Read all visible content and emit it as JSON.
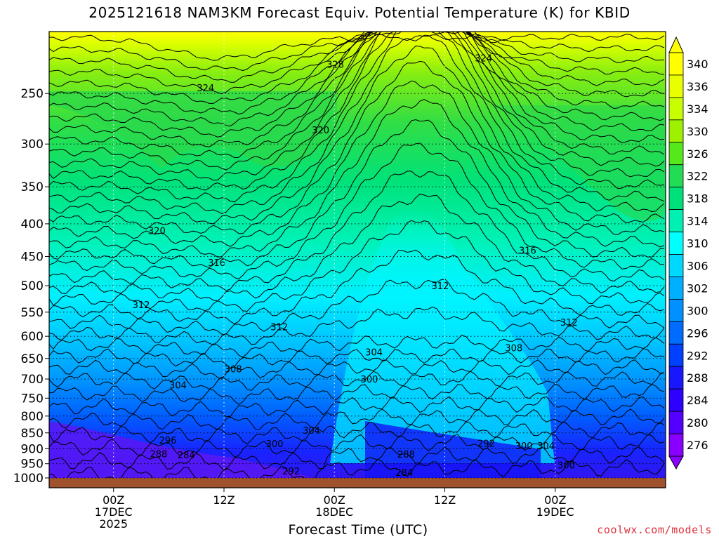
{
  "title": "2025121618 NAM3KM Forecast Equiv. Potential Temperature (K) for KBID",
  "credit": "coolwx.com/models",
  "chart_data": {
    "type": "heatmap",
    "title": "2025121618 NAM3KM Forecast Equiv. Potential Temperature (K) for KBID",
    "xlabel": "Forecast Time (UTC)",
    "ylabel": "",
    "x_hours_from_start": [
      -7,
      60
    ],
    "x_ticks": [
      {
        "hour": 0,
        "lines": [
          "00Z",
          "17DEC",
          "2025"
        ]
      },
      {
        "hour": 12,
        "lines": [
          "12Z"
        ]
      },
      {
        "hour": 24,
        "lines": [
          "00Z",
          "18DEC"
        ]
      },
      {
        "hour": 36,
        "lines": [
          "12Z"
        ]
      },
      {
        "hour": 48,
        "lines": [
          "00Z",
          "19DEC"
        ]
      }
    ],
    "y_axis": "pressure (hPa), reversed",
    "y_range": [
      1000,
      200
    ],
    "y_ticks": [
      250,
      300,
      350,
      400,
      450,
      500,
      550,
      600,
      650,
      700,
      750,
      800,
      850,
      900,
      950,
      1000
    ],
    "colorbar": {
      "labels": [
        340,
        336,
        334,
        330,
        326,
        322,
        318,
        314,
        310,
        306,
        302,
        300,
        296,
        292,
        288,
        284,
        280,
        276
      ],
      "colors": [
        "#ffff00",
        "#e9ff00",
        "#c8ff00",
        "#9cf000",
        "#55e81a",
        "#22dc55",
        "#00e07a",
        "#00f0b4",
        "#00ffff",
        "#00d8ff",
        "#00b0ff",
        "#0090ff",
        "#006cff",
        "#0040ff",
        "#1818ff",
        "#2e00ff",
        "#5500ff",
        "#8a00ff"
      ]
    },
    "contour_labels": [
      {
        "text": "328",
        "hour": 24.1,
        "p": 225
      },
      {
        "text": "324",
        "hour": 10,
        "p": 245
      },
      {
        "text": "324",
        "hour": 40.2,
        "p": 220
      },
      {
        "text": "320",
        "hour": 22.5,
        "p": 285
      },
      {
        "text": "320",
        "hour": 4.7,
        "p": 410
      },
      {
        "text": "316",
        "hour": 11.2,
        "p": 460
      },
      {
        "text": "316",
        "hour": 45,
        "p": 440
      },
      {
        "text": "312",
        "hour": 3,
        "p": 535
      },
      {
        "text": "312",
        "hour": 18,
        "p": 580
      },
      {
        "text": "312",
        "hour": 35.5,
        "p": 500
      },
      {
        "text": "312",
        "hour": 49.5,
        "p": 570
      },
      {
        "text": "308",
        "hour": 13,
        "p": 675
      },
      {
        "text": "308",
        "hour": 43.5,
        "p": 625
      },
      {
        "text": "304",
        "hour": 7,
        "p": 715
      },
      {
        "text": "304",
        "hour": 28.3,
        "p": 635
      },
      {
        "text": "304",
        "hour": 21.5,
        "p": 842
      },
      {
        "text": "304",
        "hour": 47,
        "p": 890
      },
      {
        "text": "300",
        "hour": 17.5,
        "p": 883
      },
      {
        "text": "300",
        "hour": 27.8,
        "p": 700
      },
      {
        "text": "300",
        "hour": 44.6,
        "p": 890
      },
      {
        "text": "300",
        "hour": 49.2,
        "p": 954
      },
      {
        "text": "296",
        "hour": 5.9,
        "p": 872
      },
      {
        "text": "292",
        "hour": 19.3,
        "p": 975
      },
      {
        "text": "292",
        "hour": 40.5,
        "p": 882
      },
      {
        "text": "288",
        "hour": 4.9,
        "p": 916
      },
      {
        "text": "288",
        "hour": 31.8,
        "p": 918
      },
      {
        "text": "284",
        "hour": 7.9,
        "p": 920
      },
      {
        "text": "284",
        "hour": 31.6,
        "p": 980
      }
    ],
    "terrain_color": "#a0522d"
  }
}
